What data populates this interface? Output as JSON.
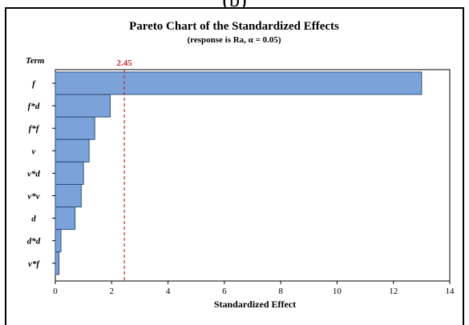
{
  "panel_label": "(b)",
  "chart_data": {
    "type": "bar",
    "orientation": "horizontal",
    "title": "Pareto Chart of the Standardized Effects",
    "subtitle": "(response is Ra, α = 0.05)",
    "xlabel": "Standardized Effect",
    "ylabel": "Term",
    "categories": [
      "f",
      "f*d",
      "f*f",
      "v",
      "v*d",
      "v*v",
      "d",
      "d*d",
      "v*f"
    ],
    "values": [
      13.0,
      1.95,
      1.4,
      1.2,
      1.0,
      0.92,
      0.7,
      0.2,
      0.13
    ],
    "xlim": [
      0,
      14
    ],
    "xticks": [
      0,
      2,
      4,
      6,
      8,
      10,
      12,
      14
    ],
    "reference_line": {
      "value": 2.45,
      "label": "2.45",
      "style": "dashed"
    },
    "grid": false,
    "colors": {
      "bar_fill": "#7ba3d9",
      "bar_stroke": "#2f4f7f",
      "reference": "#c0282d",
      "axis": "#000000"
    }
  }
}
